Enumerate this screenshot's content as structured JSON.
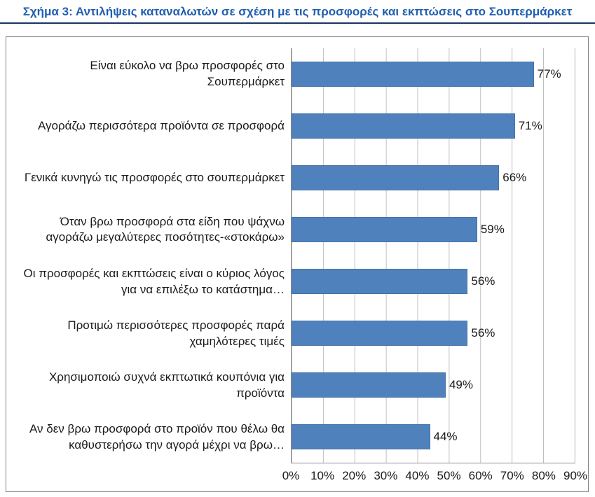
{
  "header": {
    "title": "Σχήμα 3: Αντιλήψεις καταναλωτών σε σχέση με τις προσφορές και εκπτώσεις στο Σουπερμάρκετ"
  },
  "chart_data": {
    "type": "bar",
    "orientation": "horizontal",
    "title": "Σχήμα 3: Αντιλήψεις καταναλωτών σε σχέση με τις προσφορές και εκπτώσεις στο Σουπερμάρκετ",
    "categories": [
      "Είναι εύκολο να βρω προσφορές στο Σουπερμάρκετ",
      "Αγοράζω περισσότερα προϊόντα σε προσφορά",
      "Γενικά κυνηγώ τις προσφορές στο σουπερμάρκετ",
      "Όταν βρω προσφορά στα είδη που ψάχνω αγοράζω μεγαλύτερες ποσότητες-«στοκάρω»",
      "Οι προσφορές και εκπτώσεις είναι ο κύριος λόγος για να επιλέξω το κατάστημα…",
      "Προτιμώ περισσότερες προσφορές παρά χαμηλότερες τιμές",
      "Χρησιμοποιώ συχνά εκπτωτικά κουπόνια για προϊόντα",
      "Αν δεν βρω προσφορά στο προϊόν που θέλω θα καθυστερήσω την αγορά μέχρι να βρω…"
    ],
    "values": [
      77,
      71,
      66,
      59,
      56,
      56,
      49,
      44
    ],
    "value_labels": [
      "77%",
      "71%",
      "66%",
      "59%",
      "56%",
      "56%",
      "49%",
      "44%"
    ],
    "x_ticks": [
      "0%",
      "10%",
      "20%",
      "30%",
      "40%",
      "50%",
      "60%",
      "70%",
      "80%",
      "90%"
    ],
    "xlim": [
      0,
      90
    ],
    "xlabel": "",
    "ylabel": "",
    "grid": true,
    "legend": false,
    "bar_color": "#4f81bd",
    "gridline_color": "#bfbfbf",
    "title_color": "#1f5faf"
  }
}
